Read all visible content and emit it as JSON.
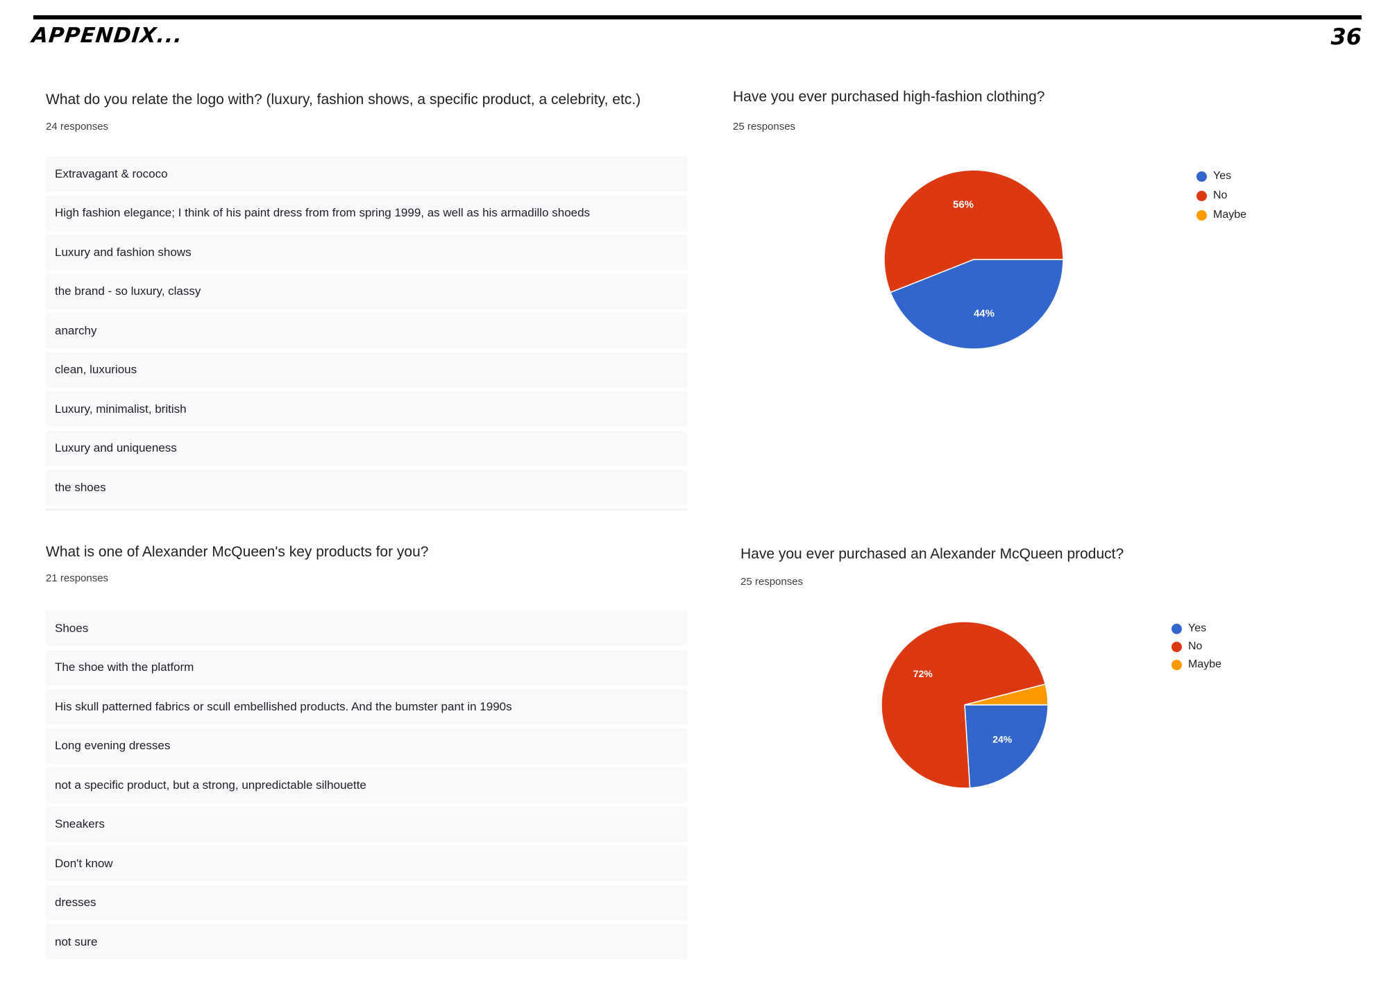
{
  "header": {
    "title": "APPENDIX...",
    "page_number": "36"
  },
  "question_logo": {
    "title": "What do you relate the logo with? (luxury, fashion shows, a specific product, a celebrity, etc.)",
    "count": "24 responses",
    "answers": [
      "Extravagant & rococo",
      "High fashion elegance; I think of his paint dress from from spring 1999, as well as his armadillo shoeds",
      "Luxury and fashion shows",
      "the brand - so luxury, classy",
      "anarchy",
      "clean, luxurious",
      "Luxury, minimalist, british",
      "Luxury and uniqueness",
      "the shoes"
    ]
  },
  "question_products": {
    "title": "What is one of Alexander McQueen's key products for you?",
    "count": "21 responses",
    "answers": [
      "Shoes",
      "The shoe with the platform",
      "His skull patterned fabrics or scull embellished products. And the bumster pant in 1990s",
      "Long evening dresses",
      "not a specific product, but a strong, unpredictable silhouette",
      "Sneakers",
      "Don't know",
      "dresses",
      "not sure"
    ]
  },
  "chart_data": [
    {
      "type": "pie",
      "title": "Have you ever purchased high-fashion clothing?",
      "subtitle": "25 responses",
      "legend_position": "right",
      "categories": [
        "Yes",
        "No",
        "Maybe"
      ],
      "values": [
        44,
        56,
        0
      ],
      "data_labels": [
        "44%",
        "56%",
        ""
      ],
      "colors": [
        "#3366cc",
        "#dc3912",
        "#ff9900"
      ]
    },
    {
      "type": "pie",
      "title": "Have you ever purchased an Alexander McQueen product?",
      "subtitle": "25 responses",
      "legend_position": "right",
      "categories": [
        "Yes",
        "No",
        "Maybe"
      ],
      "values": [
        24,
        72,
        4
      ],
      "data_labels": [
        "24%",
        "72%",
        ""
      ],
      "colors": [
        "#3366cc",
        "#dc3912",
        "#ff9900"
      ]
    }
  ]
}
